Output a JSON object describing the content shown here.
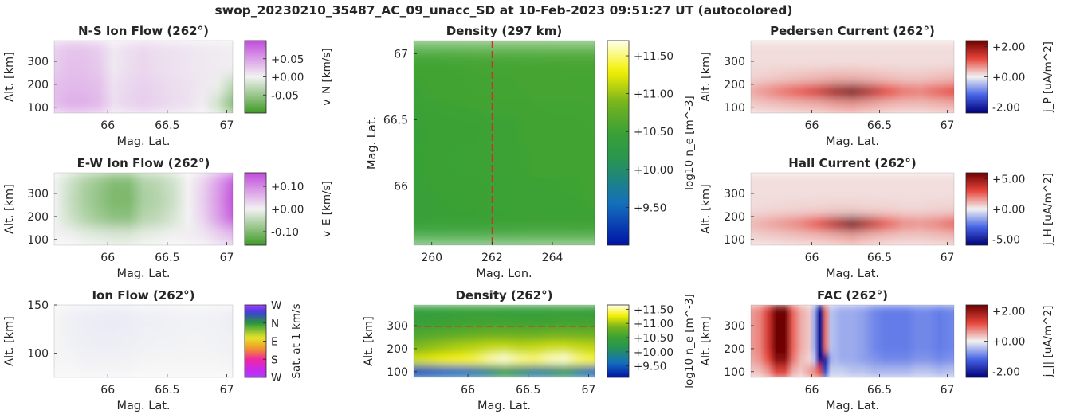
{
  "figure_title": "swop_20230210_35487_AC_09_unacc_SD at 10-Feb-2023 09:51:27 UT (autocolored)",
  "colors": {
    "density_green": "#3aa135",
    "density_yellow": "#f5f000",
    "density_blue": "#0013a6",
    "flow_purple": "#c24bdc",
    "flow_green": "#3f9a26",
    "current_red": "#6e0000",
    "current_blue": "#00007a",
    "marker_red": "#d03030",
    "axis_bg": "#f2f2f2"
  },
  "chart_data": [
    {
      "id": "ns_flow",
      "type": "heatmap",
      "title": "N-S Ion Flow (262°)",
      "xlabel": "Mag. Lat.",
      "ylabel": "Alt. [km]",
      "xlim": [
        65.55,
        67.05
      ],
      "ylim": [
        75,
        390
      ],
      "xticks": [
        {
          "v": 66,
          "label": "66"
        },
        {
          "v": 66.5,
          "label": "66.5"
        },
        {
          "v": 67,
          "label": "67"
        }
      ],
      "yticks": [
        {
          "v": 100,
          "label": "100"
        },
        {
          "v": 200,
          "label": "200"
        },
        {
          "v": 300,
          "label": "300"
        }
      ],
      "colorbar": {
        "label": "v_N [km/s]",
        "cmap": "purple_green",
        "range": [
          -0.1,
          0.1
        ],
        "ticks": [
          {
            "v": 0.05,
            "label": "+0.05"
          },
          {
            "v": 0,
            "label": "+0.00"
          },
          {
            "v": -0.05,
            "label": "-0.05"
          }
        ]
      },
      "values": [
        [
          0.02,
          0.028,
          0.028,
          0.022,
          0.006,
          0.012,
          0.016,
          0.012,
          0.01,
          0.008,
          0.006,
          0.005,
          0.003
        ],
        [
          0.022,
          0.03,
          0.03,
          0.024,
          0.006,
          0.012,
          0.016,
          0.012,
          0.01,
          0.008,
          0.006,
          0.005,
          0.002
        ],
        [
          0.03,
          0.034,
          0.034,
          0.03,
          0.01,
          0.016,
          0.02,
          0.016,
          0.012,
          0.01,
          0.006,
          -0.004,
          -0.03
        ],
        [
          0.032,
          0.04,
          0.04,
          0.034,
          0.012,
          0.018,
          0.022,
          0.018,
          0.014,
          0.01,
          0.004,
          -0.02,
          -0.06
        ]
      ]
    },
    {
      "id": "ew_flow",
      "type": "heatmap",
      "title": "E-W Ion Flow (262°)",
      "xlabel": "Mag. Lat.",
      "ylabel": "Alt. [km]",
      "xlim": [
        65.55,
        67.05
      ],
      "ylim": [
        75,
        390
      ],
      "xticks": [
        {
          "v": 66,
          "label": "66"
        },
        {
          "v": 66.5,
          "label": "66.5"
        },
        {
          "v": 67,
          "label": "67"
        }
      ],
      "yticks": [
        {
          "v": 100,
          "label": "100"
        },
        {
          "v": 200,
          "label": "200"
        },
        {
          "v": 300,
          "label": "300"
        }
      ],
      "colorbar": {
        "label": "v_E [km/s]",
        "cmap": "purple_green",
        "range": [
          -0.16,
          0.16
        ],
        "ticks": [
          {
            "v": 0.1,
            "label": "+0.10"
          },
          {
            "v": 0,
            "label": "+0.00"
          },
          {
            "v": -0.1,
            "label": "-0.10"
          }
        ]
      },
      "values": [
        [
          0.0,
          -0.03,
          -0.06,
          -0.08,
          -0.1,
          -0.1,
          -0.06,
          -0.05,
          -0.03,
          0.0,
          0.03,
          0.08,
          0.14
        ],
        [
          0.0,
          -0.035,
          -0.065,
          -0.085,
          -0.105,
          -0.105,
          -0.065,
          -0.055,
          -0.035,
          0.0,
          0.035,
          0.085,
          0.15
        ],
        [
          0.0,
          -0.03,
          -0.055,
          -0.075,
          -0.09,
          -0.09,
          -0.055,
          -0.045,
          -0.025,
          0.0,
          0.03,
          0.08,
          0.14
        ],
        [
          0.0,
          0.0,
          -0.01,
          -0.015,
          -0.02,
          -0.02,
          -0.01,
          -0.005,
          0.0,
          0.005,
          0.01,
          0.03,
          0.05
        ]
      ]
    },
    {
      "id": "ion_flow",
      "type": "heatmap",
      "title": "Ion Flow (262°)",
      "xlabel": "Mag. Lat.",
      "ylabel": "Alt. [km]",
      "xlim": [
        65.55,
        67.05
      ],
      "ylim": [
        75,
        150
      ],
      "xticks": [
        {
          "v": 66,
          "label": "66"
        },
        {
          "v": 66.5,
          "label": "66.5"
        },
        {
          "v": 67,
          "label": "67"
        }
      ],
      "yticks": [
        {
          "v": 100,
          "label": "100"
        },
        {
          "v": 150,
          "label": "150"
        }
      ],
      "colorbar": {
        "label": "Sat. at 1 km/s",
        "cmap": "direction",
        "ticks": [
          {
            "pos": 0.0,
            "label": "W"
          },
          {
            "pos": 0.25,
            "label": "N"
          },
          {
            "pos": 0.5,
            "label": "E"
          },
          {
            "pos": 0.75,
            "label": "S"
          },
          {
            "pos": 1.0,
            "label": "W"
          }
        ]
      },
      "values": [
        [
          0.0,
          0.03,
          0.05,
          0.06,
          0.07,
          0.06,
          0.04,
          0.04,
          0.03,
          0.02,
          0.02,
          0.03,
          0.05
        ],
        [
          0.0,
          0.02,
          0.04,
          0.05,
          0.05,
          0.04,
          0.03,
          0.02,
          0.02,
          0.01,
          0.01,
          0.02,
          0.03
        ],
        [
          0.0,
          0.0,
          0.01,
          0.01,
          0.01,
          0.01,
          0.0,
          0.0,
          0.0,
          0.0,
          0.0,
          0.0,
          0.01
        ]
      ]
    },
    {
      "id": "density_map",
      "type": "heatmap",
      "title": "Density (297 km)",
      "xlabel": "Mag. Lon.",
      "ylabel": "Mag. Lat.",
      "xlim": [
        259.4,
        265.4
      ],
      "ylim": [
        65.55,
        67.1
      ],
      "xticks": [
        {
          "v": 260,
          "label": "260"
        },
        {
          "v": 262,
          "label": "262"
        },
        {
          "v": 264,
          "label": "264"
        }
      ],
      "yticks": [
        {
          "v": 66,
          "label": "66"
        },
        {
          "v": 66.5,
          "label": "66.5"
        },
        {
          "v": 67,
          "label": "67"
        }
      ],
      "marker": {
        "axis": "x",
        "value": 262
      },
      "colorbar": {
        "label": "log10 n_e [m^-3]",
        "cmap": "density",
        "range": [
          9.0,
          11.7
        ],
        "ticks": [
          {
            "v": 11.5,
            "label": "+11.50"
          },
          {
            "v": 11.0,
            "label": "+11.00"
          },
          {
            "v": 10.5,
            "label": "+10.50"
          },
          {
            "v": 10.0,
            "label": "+10.00"
          },
          {
            "v": 9.5,
            "label": "+9.50"
          }
        ]
      },
      "values": [
        [
          10.52,
          10.55,
          10.56,
          10.57
        ],
        [
          10.51,
          10.54,
          10.55,
          10.56
        ],
        [
          10.46,
          10.49,
          10.52,
          10.54
        ],
        [
          10.47,
          10.5,
          10.52,
          10.53
        ],
        [
          10.46,
          10.48,
          10.5,
          10.52
        ],
        [
          10.46,
          10.47,
          10.5,
          10.51
        ]
      ]
    },
    {
      "id": "density_profile",
      "type": "heatmap",
      "title": "Density (262°)",
      "xlabel": "Mag. Lat.",
      "ylabel": "Alt. [km]",
      "xlim": [
        65.55,
        67.05
      ],
      "ylim": [
        75,
        390
      ],
      "xticks": [
        {
          "v": 66,
          "label": "66"
        },
        {
          "v": 66.5,
          "label": "66.5"
        },
        {
          "v": 67,
          "label": "67"
        }
      ],
      "yticks": [
        {
          "v": 100,
          "label": "100"
        },
        {
          "v": 200,
          "label": "200"
        },
        {
          "v": 300,
          "label": "300"
        }
      ],
      "marker": {
        "axis": "y",
        "value": 297
      },
      "colorbar": {
        "label": "log10 n_e [m^-3]",
        "cmap": "density",
        "range": [
          9.1,
          11.65
        ],
        "ticks": [
          {
            "v": 11.5,
            "label": "+11.50"
          },
          {
            "v": 11.0,
            "label": "+11.00"
          },
          {
            "v": 10.5,
            "label": "+10.50"
          },
          {
            "v": 10.0,
            "label": "+10.00"
          },
          {
            "v": 9.5,
            "label": "+9.50"
          }
        ]
      },
      "values": [
        [
          10.38,
          10.4,
          10.42,
          10.44,
          10.45,
          10.44,
          10.43,
          10.42,
          10.42,
          10.44,
          10.45,
          10.44,
          10.43
        ],
        [
          10.46,
          10.48,
          10.5,
          10.52,
          10.54,
          10.55,
          10.55,
          10.54,
          10.53,
          10.53,
          10.54,
          10.55,
          10.55
        ],
        [
          10.62,
          10.66,
          10.7,
          10.74,
          10.78,
          10.82,
          10.82,
          10.8,
          10.8,
          10.84,
          10.86,
          10.84,
          10.82
        ],
        [
          10.9,
          10.95,
          11.0,
          11.05,
          11.08,
          11.12,
          11.14,
          11.1,
          11.12,
          11.15,
          11.16,
          11.12,
          11.1
        ],
        [
          11.15,
          11.2,
          11.25,
          11.3,
          11.38,
          11.52,
          11.6,
          11.5,
          11.45,
          11.55,
          11.6,
          11.45,
          11.35
        ],
        [
          9.45,
          9.5,
          9.55,
          9.6,
          9.7,
          9.9,
          10.2,
          10.0,
          9.8,
          9.9,
          10.1,
          9.8,
          9.6
        ]
      ]
    },
    {
      "id": "pedersen",
      "type": "heatmap",
      "title": "Pedersen Current (262°)",
      "xlabel": "Mag. Lat.",
      "ylabel": "Alt. [km]",
      "xlim": [
        65.55,
        67.05
      ],
      "ylim": [
        75,
        390
      ],
      "xticks": [
        {
          "v": 66,
          "label": "66"
        },
        {
          "v": 66.5,
          "label": "66.5"
        },
        {
          "v": 67,
          "label": "67"
        }
      ],
      "yticks": [
        {
          "v": 100,
          "label": "100"
        },
        {
          "v": 200,
          "label": "200"
        },
        {
          "v": 300,
          "label": "300"
        }
      ],
      "colorbar": {
        "label": "j_P [uA/m^2]",
        "cmap": "red_blue",
        "range": [
          -2.4,
          2.4
        ],
        "ticks": [
          {
            "v": 2.0,
            "label": "+2.00"
          },
          {
            "v": 0,
            "label": "+0.00"
          },
          {
            "v": -2.0,
            "label": "-2.00"
          }
        ]
      },
      "values": [
        [
          0.15,
          0.15,
          0.15,
          0.15,
          0.15,
          0.15,
          0.15,
          0.15,
          0.15,
          0.15,
          0.15,
          0.15,
          0.15
        ],
        [
          0.15,
          0.15,
          0.15,
          0.15,
          0.15,
          0.15,
          0.15,
          0.15,
          0.15,
          0.15,
          0.15,
          0.15,
          0.15
        ],
        [
          0.2,
          0.25,
          0.3,
          0.35,
          0.4,
          0.45,
          0.45,
          0.4,
          0.35,
          0.3,
          0.3,
          0.35,
          0.4
        ],
        [
          0.5,
          0.7,
          0.9,
          1.1,
          1.4,
          1.9,
          2.2,
          1.7,
          1.2,
          0.9,
          0.8,
          1.0,
          1.2
        ],
        [
          0.25,
          0.3,
          0.35,
          0.4,
          0.45,
          0.55,
          0.6,
          0.5,
          0.4,
          0.35,
          0.35,
          0.4,
          0.45
        ]
      ]
    },
    {
      "id": "hall",
      "type": "heatmap",
      "title": "Hall Current (262°)",
      "xlabel": "Mag. Lat.",
      "ylabel": "Alt. [km]",
      "xlim": [
        65.55,
        67.05
      ],
      "ylim": [
        75,
        390
      ],
      "xticks": [
        {
          "v": 66,
          "label": "66"
        },
        {
          "v": 66.5,
          "label": "66.5"
        },
        {
          "v": 67,
          "label": "67"
        }
      ],
      "yticks": [
        {
          "v": 100,
          "label": "100"
        },
        {
          "v": 200,
          "label": "200"
        },
        {
          "v": 300,
          "label": "300"
        }
      ],
      "colorbar": {
        "label": "j_H [uA/m^2]",
        "cmap": "red_blue",
        "range": [
          -6.0,
          6.0
        ],
        "ticks": [
          {
            "v": 5.0,
            "label": "+5.00"
          },
          {
            "v": 0,
            "label": "+0.00"
          },
          {
            "v": -5.0,
            "label": "-5.00"
          }
        ]
      },
      "values": [
        [
          0.35,
          0.35,
          0.35,
          0.35,
          0.35,
          0.35,
          0.35,
          0.35,
          0.35,
          0.35,
          0.35,
          0.35,
          0.35
        ],
        [
          0.35,
          0.35,
          0.35,
          0.35,
          0.35,
          0.35,
          0.35,
          0.35,
          0.35,
          0.35,
          0.35,
          0.35,
          0.35
        ],
        [
          0.4,
          0.45,
          0.5,
          0.55,
          0.6,
          0.65,
          0.65,
          0.6,
          0.55,
          0.5,
          0.5,
          0.55,
          0.6
        ],
        [
          1.0,
          1.3,
          1.6,
          2.0,
          2.8,
          4.2,
          5.6,
          4.0,
          2.6,
          1.8,
          1.6,
          1.9,
          2.4
        ],
        [
          0.5,
          0.6,
          0.7,
          0.8,
          0.9,
          1.1,
          1.3,
          1.0,
          0.8,
          0.7,
          0.7,
          0.8,
          0.9
        ]
      ]
    },
    {
      "id": "fac",
      "type": "heatmap",
      "title": "FAC (262°)",
      "xlabel": "Mag. Lat.",
      "ylabel": "Alt. [km]",
      "xlim": [
        65.55,
        67.05
      ],
      "ylim": [
        75,
        390
      ],
      "xticks": [
        {
          "v": 66,
          "label": "66"
        },
        {
          "v": 66.5,
          "label": "66.5"
        },
        {
          "v": 67,
          "label": "67"
        }
      ],
      "yticks": [
        {
          "v": 100,
          "label": "100"
        },
        {
          "v": 200,
          "label": "200"
        },
        {
          "v": 300,
          "label": "300"
        }
      ],
      "colorbar": {
        "label": "j_|| [uA/m^2]",
        "cmap": "red_blue",
        "range": [
          -2.4,
          2.4
        ],
        "ticks": [
          {
            "v": 2.0,
            "label": "+2.00"
          },
          {
            "v": 0,
            "label": "+0.00"
          },
          {
            "v": -2.0,
            "label": "-2.00"
          }
        ]
      },
      "x": [
        65.55,
        65.62,
        65.68,
        65.74,
        65.8,
        65.86,
        65.92,
        65.98,
        66.02,
        66.06,
        66.1,
        66.14,
        66.18,
        66.22,
        66.3,
        66.38,
        66.46,
        66.54,
        66.62,
        66.7,
        66.78,
        66.86,
        66.94,
        67.05
      ],
      "values": [
        [
          0.6,
          0.8,
          1.4,
          2.4,
          2.4,
          1.0,
          0.5,
          0.3,
          -0.6,
          -2.2,
          0.9,
          -0.4,
          -0.5,
          -0.6,
          -0.6,
          -0.7,
          -0.9,
          -1.0,
          -1.0,
          -1.0,
          -0.9,
          -0.9,
          -1.0,
          -0.9
        ],
        [
          0.6,
          0.8,
          1.4,
          2.4,
          2.4,
          1.0,
          0.5,
          0.3,
          -0.6,
          -2.2,
          0.9,
          -0.4,
          -0.5,
          -0.6,
          -0.6,
          -0.7,
          -0.9,
          -1.0,
          -1.0,
          -1.0,
          -0.9,
          -0.9,
          -1.0,
          -0.9
        ],
        [
          0.6,
          0.8,
          1.4,
          2.4,
          2.4,
          1.0,
          0.5,
          0.3,
          -0.6,
          -2.2,
          0.9,
          -0.4,
          -0.5,
          -0.6,
          -0.6,
          -0.7,
          -0.9,
          -1.0,
          -1.0,
          -1.0,
          -0.9,
          -0.9,
          -1.0,
          -0.9
        ],
        [
          0.6,
          0.8,
          1.4,
          2.4,
          2.4,
          1.0,
          0.5,
          0.3,
          -0.6,
          -2.2,
          0.9,
          -0.4,
          -0.5,
          -0.6,
          -0.6,
          -0.7,
          -0.9,
          -1.0,
          -1.0,
          -1.0,
          -0.9,
          -0.9,
          -1.0,
          -0.9
        ],
        [
          0.5,
          0.7,
          1.2,
          2.2,
          2.2,
          0.9,
          0.4,
          0.2,
          -0.4,
          -2.3,
          -2.0,
          -0.6,
          -0.5,
          -0.6,
          -0.6,
          -0.7,
          -0.8,
          -0.9,
          -0.9,
          -0.9,
          -0.8,
          -0.8,
          -0.9,
          -0.8
        ],
        [
          0.3,
          0.4,
          0.7,
          1.3,
          1.3,
          0.5,
          0.3,
          0.6,
          0.8,
          1.2,
          -1.5,
          -0.3,
          -0.3,
          -0.3,
          -0.4,
          -0.4,
          -0.5,
          -0.5,
          -0.5,
          -0.5,
          -0.4,
          -0.4,
          -0.5,
          -0.4
        ]
      ]
    }
  ]
}
